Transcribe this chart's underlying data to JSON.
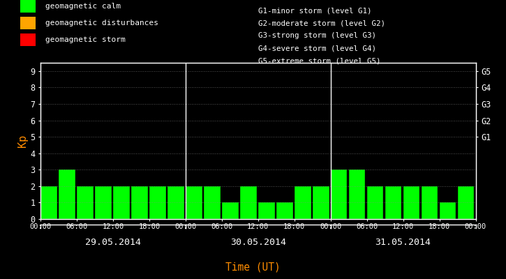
{
  "bg_color": "#000000",
  "bar_color": "#00ff00",
  "bar_edge_color": "#000000",
  "text_color": "#ffffff",
  "axis_color": "#ffffff",
  "ylabel_color": "#ff8c00",
  "xlabel_color": "#ff8c00",
  "grid_color": "#ffffff",
  "kp_values_day1": [
    2,
    3,
    2,
    2,
    2,
    2,
    2,
    2
  ],
  "kp_values_day2": [
    2,
    2,
    1,
    2,
    1,
    1,
    2,
    2
  ],
  "kp_values_day3": [
    3,
    3,
    2,
    2,
    2,
    2,
    1,
    2
  ],
  "ylim": [
    0,
    9.5
  ],
  "yticks": [
    0,
    1,
    2,
    3,
    4,
    5,
    6,
    7,
    8,
    9
  ],
  "legend_calm_color": "#00ff00",
  "legend_disturb_color": "#ffa500",
  "legend_storm_color": "#ff0000",
  "legend_calm_label": "geomagnetic calm",
  "legend_disturb_label": "geomagnetic disturbances",
  "legend_storm_label": "geomagnetic storm",
  "g_levels": [
    "G1-minor storm (level G1)",
    "G2-moderate storm (level G2)",
    "G3-strong storm (level G3)",
    "G4-severe storm (level G4)",
    "G5-extreme storm (level G5)"
  ],
  "g_labels": [
    "G1",
    "G2",
    "G3",
    "G4",
    "G5"
  ],
  "g_yticks": [
    5,
    6,
    7,
    8,
    9
  ],
  "date_labels": [
    "29.05.2014",
    "30.05.2014",
    "31.05.2014"
  ],
  "ylabel": "Kp",
  "xlabel": "Time (UT)",
  "xtick_labels": [
    "00:00",
    "06:00",
    "12:00",
    "18:00",
    "00:00",
    "06:00",
    "12:00",
    "18:00",
    "00:00",
    "06:00",
    "12:00",
    "18:00",
    "00:00"
  ]
}
